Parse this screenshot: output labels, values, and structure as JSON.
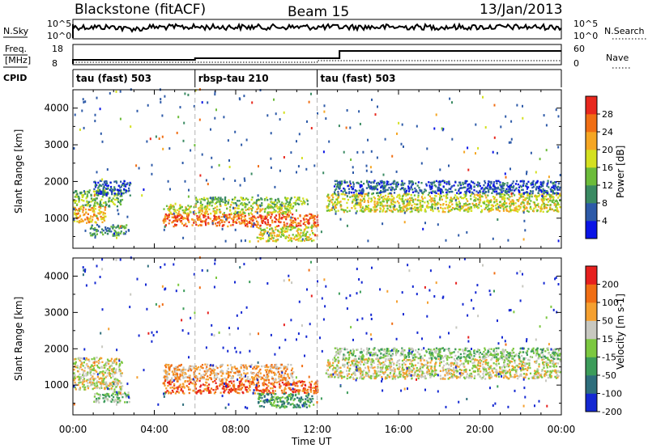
{
  "header": {
    "station": "Blackstone (fitACF)",
    "beam": "Beam 15",
    "date": "13/Jan/2013"
  },
  "strips": {
    "nsky_label": "N.Sky",
    "nsky_ticks": [
      "10^5",
      "10^0"
    ],
    "nsearch_label": "N.Search",
    "nsearch_ticks": [
      "10^5",
      "10^0"
    ],
    "freq_label": "Freq.",
    "freq_unit": "[MHz]",
    "freq_ticks": [
      "18",
      "8"
    ],
    "nave_label": "Nave",
    "nave_ticks": [
      "60",
      "0"
    ],
    "cpid_label": "CPID",
    "cpid_segments": [
      {
        "label": "tau (fast) 503",
        "start_h": 0,
        "end_h": 6
      },
      {
        "label": "rbsp-tau 210",
        "start_h": 6,
        "end_h": 12
      },
      {
        "label": "tau (fast) 503",
        "start_h": 12,
        "end_h": 24
      }
    ]
  },
  "chart_data": [
    {
      "type": "heatmap",
      "title": "",
      "xlabel": "Time UT",
      "ylabel": "Slant Range [km]",
      "xlim": [
        0,
        24
      ],
      "ylim": [
        180,
        4500
      ],
      "x_ticks": [
        "00:00",
        "04:00",
        "08:00",
        "12:00",
        "16:00",
        "20:00",
        "00:00"
      ],
      "y_ticks": [
        1000,
        2000,
        3000,
        4000
      ],
      "colorbar": {
        "label": "Power [dB]",
        "ticks": [
          4,
          8,
          12,
          16,
          20,
          24,
          28
        ],
        "range": [
          0,
          32
        ],
        "colors": [
          "#0a14e6",
          "#2d5aa8",
          "#3a8a62",
          "#6cbc3a",
          "#d4e020",
          "#f5a623",
          "#f06e14",
          "#e8281e"
        ]
      },
      "bands": [
        {
          "t0": 0.0,
          "t1": 2.4,
          "r0": 1300,
          "r1": 1750,
          "level": 3
        },
        {
          "t0": 0.0,
          "t1": 1.6,
          "r0": 850,
          "r1": 1300,
          "level": 5
        },
        {
          "t0": 0.8,
          "t1": 2.6,
          "r0": 500,
          "r1": 800,
          "level": 2
        },
        {
          "t0": 1.0,
          "t1": 2.8,
          "r0": 1600,
          "r1": 2000,
          "level": 1
        },
        {
          "t0": 4.4,
          "t1": 12.0,
          "r0": 750,
          "r1": 1100,
          "level": 6
        },
        {
          "t0": 4.4,
          "t1": 10.8,
          "r0": 1100,
          "r1": 1350,
          "level": 4
        },
        {
          "t0": 6.0,
          "t1": 11.5,
          "r0": 1350,
          "r1": 1550,
          "level": 3
        },
        {
          "t0": 9.0,
          "t1": 11.8,
          "r0": 350,
          "r1": 750,
          "level": 4
        },
        {
          "t0": 12.4,
          "t1": 23.9,
          "r0": 1150,
          "r1": 1650,
          "level": 4
        },
        {
          "t0": 12.8,
          "t1": 23.9,
          "r0": 1650,
          "r1": 2000,
          "level": 1
        }
      ],
      "noise_level": 1
    },
    {
      "type": "heatmap",
      "title": "",
      "xlabel": "Time UT",
      "ylabel": "Slant Range [km]",
      "xlim": [
        0,
        24
      ],
      "ylim": [
        180,
        4500
      ],
      "x_ticks": [
        "00:00",
        "04:00",
        "08:00",
        "12:00",
        "16:00",
        "20:00",
        "00:00"
      ],
      "y_ticks": [
        1000,
        2000,
        3000,
        4000
      ],
      "colorbar": {
        "label": "Velocity [m s-1]",
        "ticks": [
          200,
          100,
          50,
          15,
          -15,
          -50,
          -100,
          -200
        ],
        "range": [
          -250,
          250
        ],
        "colors": [
          "#1428d2",
          "#2e6e7c",
          "#3c9c5a",
          "#7cc840",
          "#c8c8c0",
          "#f5a030",
          "#f06e14",
          "#e6201e"
        ]
      },
      "bands": [
        {
          "t0": 0.0,
          "t1": 2.4,
          "r0": 850,
          "r1": 1750,
          "level": 4
        },
        {
          "t0": 1.0,
          "t1": 2.8,
          "r0": 500,
          "r1": 800,
          "level": 3
        },
        {
          "t0": 4.4,
          "t1": 12.0,
          "r0": 750,
          "r1": 1100,
          "level": 6
        },
        {
          "t0": 4.4,
          "t1": 10.8,
          "r0": 1100,
          "r1": 1550,
          "level": 5
        },
        {
          "t0": 9.0,
          "t1": 11.8,
          "r0": 350,
          "r1": 750,
          "level": 2
        },
        {
          "t0": 12.4,
          "t1": 23.9,
          "r0": 1150,
          "r1": 1700,
          "level": 4
        },
        {
          "t0": 12.8,
          "t1": 23.9,
          "r0": 1700,
          "r1": 2000,
          "level": 3
        }
      ],
      "noise_level": 0
    }
  ]
}
